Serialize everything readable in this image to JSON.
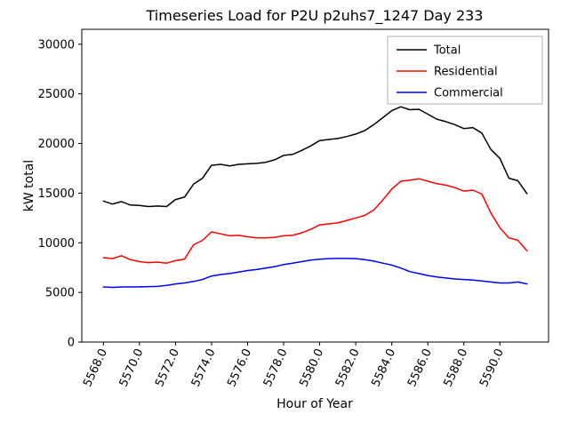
{
  "chart_data": {
    "type": "line",
    "title": "Timeseries Load for P2U p2uhs7_1247  Day 233",
    "xlabel": "Hour of Year",
    "ylabel": "kW total",
    "grid": false,
    "legend_position": "upper right",
    "legend_border_color": "#b0b0b0",
    "xlim": [
      5566.8,
      5592.7
    ],
    "ylim": [
      0,
      31500
    ],
    "x_ticks": [
      5568,
      5570,
      5572,
      5574,
      5576,
      5578,
      5580,
      5582,
      5584,
      5586,
      5588,
      5590
    ],
    "x_tick_labels": [
      "5568.0",
      "5570.0",
      "5572.0",
      "5574.0",
      "5576.0",
      "5578.0",
      "5580.0",
      "5582.0",
      "5584.0",
      "5586.0",
      "5588.0",
      "5590.0"
    ],
    "y_ticks": [
      0,
      5000,
      10000,
      15000,
      20000,
      25000,
      30000
    ],
    "y_tick_labels": [
      "0",
      "5000",
      "10000",
      "15000",
      "20000",
      "25000",
      "30000"
    ],
    "x": [
      5568.0,
      5568.5,
      5569.0,
      5569.5,
      5570.0,
      5570.5,
      5571.0,
      5571.5,
      5572.0,
      5572.5,
      5573.0,
      5573.5,
      5574.0,
      5574.5,
      5575.0,
      5575.5,
      5576.0,
      5576.5,
      5577.0,
      5577.5,
      5578.0,
      5578.5,
      5579.0,
      5579.5,
      5580.0,
      5580.5,
      5581.0,
      5581.5,
      5582.0,
      5582.5,
      5583.0,
      5583.5,
      5584.0,
      5584.5,
      5585.0,
      5585.5,
      5586.0,
      5586.5,
      5587.0,
      5587.5,
      5588.0,
      5588.5,
      5589.0,
      5589.5,
      5590.0,
      5590.5,
      5591.0,
      5591.5
    ],
    "series": [
      {
        "name": "Total",
        "color": "#000000",
        "values": [
          14200,
          13900,
          14150,
          13800,
          13750,
          13650,
          13700,
          13650,
          14350,
          14600,
          15900,
          16500,
          17800,
          17900,
          17750,
          17900,
          17950,
          18000,
          18100,
          18350,
          18800,
          18900,
          19300,
          19750,
          20300,
          20400,
          20500,
          20700,
          20950,
          21300,
          21900,
          22600,
          23300,
          23700,
          23400,
          23450,
          22950,
          22450,
          22200,
          21900,
          21500,
          21600,
          21050,
          19400,
          18500,
          16500,
          16250,
          14950
        ]
      },
      {
        "name": "Residential",
        "color": "#ff0000",
        "values": [
          8500,
          8400,
          8700,
          8300,
          8100,
          8000,
          8050,
          7950,
          8200,
          8350,
          9800,
          10250,
          11100,
          10900,
          10700,
          10750,
          10600,
          10500,
          10500,
          10550,
          10700,
          10750,
          11000,
          11350,
          11800,
          11900,
          12000,
          12250,
          12500,
          12750,
          13300,
          14300,
          15400,
          16200,
          16300,
          16450,
          16200,
          15950,
          15800,
          15550,
          15200,
          15300,
          14900,
          13000,
          11500,
          10500,
          10250,
          9200
        ]
      },
      {
        "name": "Commercial",
        "color": "#0000ff",
        "values": [
          5550,
          5500,
          5550,
          5550,
          5560,
          5580,
          5600,
          5700,
          5850,
          5950,
          6100,
          6300,
          6650,
          6800,
          6900,
          7050,
          7200,
          7300,
          7450,
          7600,
          7800,
          7950,
          8100,
          8250,
          8350,
          8400,
          8420,
          8420,
          8400,
          8300,
          8150,
          7950,
          7750,
          7450,
          7100,
          6900,
          6700,
          6550,
          6450,
          6350,
          6300,
          6250,
          6150,
          6050,
          5950,
          5950,
          6050,
          5850
        ]
      }
    ]
  }
}
